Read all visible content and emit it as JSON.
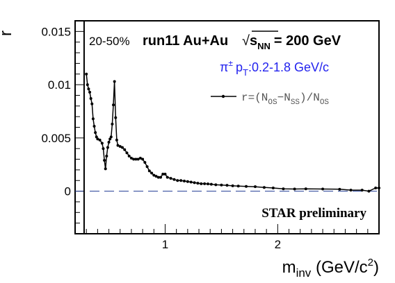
{
  "chart_data": {
    "type": "line",
    "xlabel": "m",
    "xlabel_sub": "inv",
    "xlabel_unit_pre": " (GeV/c",
    "xlabel_unit_sup": "2",
    "xlabel_unit_post": ")",
    "ylabel": "r",
    "xlim": [
      0.2,
      2.9
    ],
    "ylim": [
      -0.004,
      0.016
    ],
    "xticks": [
      1,
      2
    ],
    "xtick_labels": [
      "1",
      "2"
    ],
    "yticks": [
      0,
      0.005,
      0.01,
      0.015
    ],
    "ytick_labels": [
      "0",
      "0.005",
      "0.01",
      "0.015"
    ],
    "reference_line": {
      "y": 0,
      "style": "dashed",
      "color": "#1f3a93"
    },
    "vertical_line": {
      "x": 0.28
    },
    "annotations": {
      "centrality": "20-50%",
      "run": "run11 Au+Au",
      "sqrt_symbol": "√",
      "energy_var": "s",
      "energy_sub": "NN",
      "energy_val": "= 200 GeV",
      "particle": "π",
      "particle_sup": "±",
      "pt_text": "p",
      "pt_sub": "T",
      "pt_range": ":0.2-1.8 GeV/c",
      "preliminary": "STAR preliminary"
    },
    "series": [
      {
        "legend_parts": {
          "lhs": "r=(N",
          "sub1": "OS",
          "minus": "−N",
          "sub2": "SS",
          "slash": ")/N",
          "sub3": "OS"
        },
        "color": "#000000",
        "points": [
          [
            0.3,
            0.011
          ],
          [
            0.31,
            0.01
          ],
          [
            0.32,
            0.0096
          ],
          [
            0.33,
            0.0093
          ],
          [
            0.34,
            0.0087
          ],
          [
            0.35,
            0.0082
          ],
          [
            0.36,
            0.0068
          ],
          [
            0.37,
            0.0061
          ],
          [
            0.38,
            0.0055
          ],
          [
            0.39,
            0.0051
          ],
          [
            0.4,
            0.0049
          ],
          [
            0.42,
            0.0048
          ],
          [
            0.44,
            0.0045
          ],
          [
            0.45,
            0.004
          ],
          [
            0.46,
            0.0029
          ],
          [
            0.47,
            0.0021
          ],
          [
            0.48,
            0.0033
          ],
          [
            0.49,
            0.0041
          ],
          [
            0.5,
            0.0046
          ],
          [
            0.51,
            0.0049
          ],
          [
            0.52,
            0.0051
          ],
          [
            0.53,
            0.0063
          ],
          [
            0.54,
            0.0081
          ],
          [
            0.55,
            0.0103
          ],
          [
            0.56,
            0.0069
          ],
          [
            0.57,
            0.0048
          ],
          [
            0.58,
            0.0043
          ],
          [
            0.6,
            0.0042
          ],
          [
            0.62,
            0.0041
          ],
          [
            0.64,
            0.0039
          ],
          [
            0.66,
            0.0036
          ],
          [
            0.68,
            0.0033
          ],
          [
            0.7,
            0.0031
          ],
          [
            0.72,
            0.003
          ],
          [
            0.74,
            0.003
          ],
          [
            0.76,
            0.003
          ],
          [
            0.78,
            0.0031
          ],
          [
            0.8,
            0.003
          ],
          [
            0.82,
            0.0027
          ],
          [
            0.84,
            0.0023
          ],
          [
            0.86,
            0.0019
          ],
          [
            0.88,
            0.0017
          ],
          [
            0.9,
            0.0015
          ],
          [
            0.92,
            0.0014
          ],
          [
            0.94,
            0.0013
          ],
          [
            0.96,
            0.0013
          ],
          [
            0.98,
            0.0016
          ],
          [
            1.0,
            0.0016
          ],
          [
            1.02,
            0.0013
          ],
          [
            1.05,
            0.0012
          ],
          [
            1.08,
            0.0011
          ],
          [
            1.11,
            0.001
          ],
          [
            1.14,
            0.001
          ],
          [
            1.17,
            0.00095
          ],
          [
            1.2,
            0.0009
          ],
          [
            1.23,
            0.00085
          ],
          [
            1.26,
            0.0008
          ],
          [
            1.29,
            0.00075
          ],
          [
            1.32,
            0.0007
          ],
          [
            1.35,
            0.0007
          ],
          [
            1.38,
            0.00068
          ],
          [
            1.41,
            0.00065
          ],
          [
            1.45,
            0.0006
          ],
          [
            1.5,
            0.00058
          ],
          [
            1.55,
            0.00055
          ],
          [
            1.6,
            0.0005
          ],
          [
            1.65,
            0.00048
          ],
          [
            1.72,
            0.00045
          ],
          [
            1.8,
            0.00042
          ],
          [
            1.88,
            0.00035
          ],
          [
            1.96,
            0.0003
          ],
          [
            2.05,
            0.00022
          ],
          [
            2.15,
            0.0002
          ],
          [
            2.25,
            0.00022
          ],
          [
            2.4,
            0.0002
          ],
          [
            2.55,
            0.00018
          ],
          [
            2.65,
            0.0001
          ],
          [
            2.75,
            0.0001
          ],
          [
            2.81,
            0.0
          ],
          [
            2.87,
            0.0003
          ],
          [
            2.9,
            0.0003
          ]
        ]
      }
    ]
  }
}
